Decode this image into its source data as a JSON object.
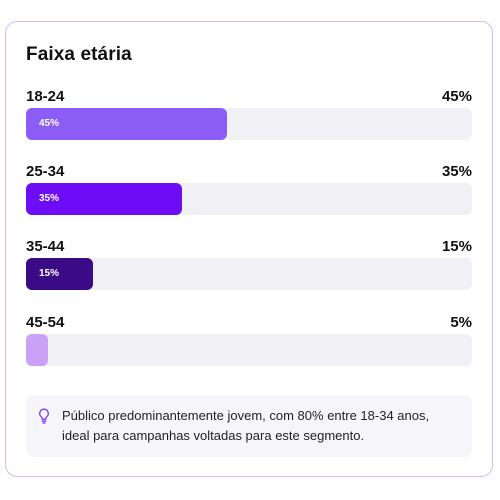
{
  "card": {
    "title": "Faixa etária"
  },
  "rows": [
    {
      "label": "18-24",
      "pct_text": "45%",
      "bar_text": "45%",
      "value": 45,
      "color": "#8b5cf6"
    },
    {
      "label": "25-34",
      "pct_text": "35%",
      "bar_text": "35%",
      "value": 35,
      "color": "#6d0df5"
    },
    {
      "label": "35-44",
      "pct_text": "15%",
      "bar_text": "15%",
      "value": 15,
      "color": "#3b0a86"
    },
    {
      "label": "45-54",
      "pct_text": "5%",
      "bar_text": "",
      "value": 5,
      "color": "#c9a2f7"
    }
  ],
  "note": {
    "icon": "lightbulb-icon",
    "text": "Público predominantemente jovem, com 80% entre 18-34 anos, ideal para campanhas voltadas para este segmento."
  },
  "colors": {
    "track": "#f1f1f5",
    "border": "#d9b6f5",
    "accent": "#7c3aed"
  }
}
